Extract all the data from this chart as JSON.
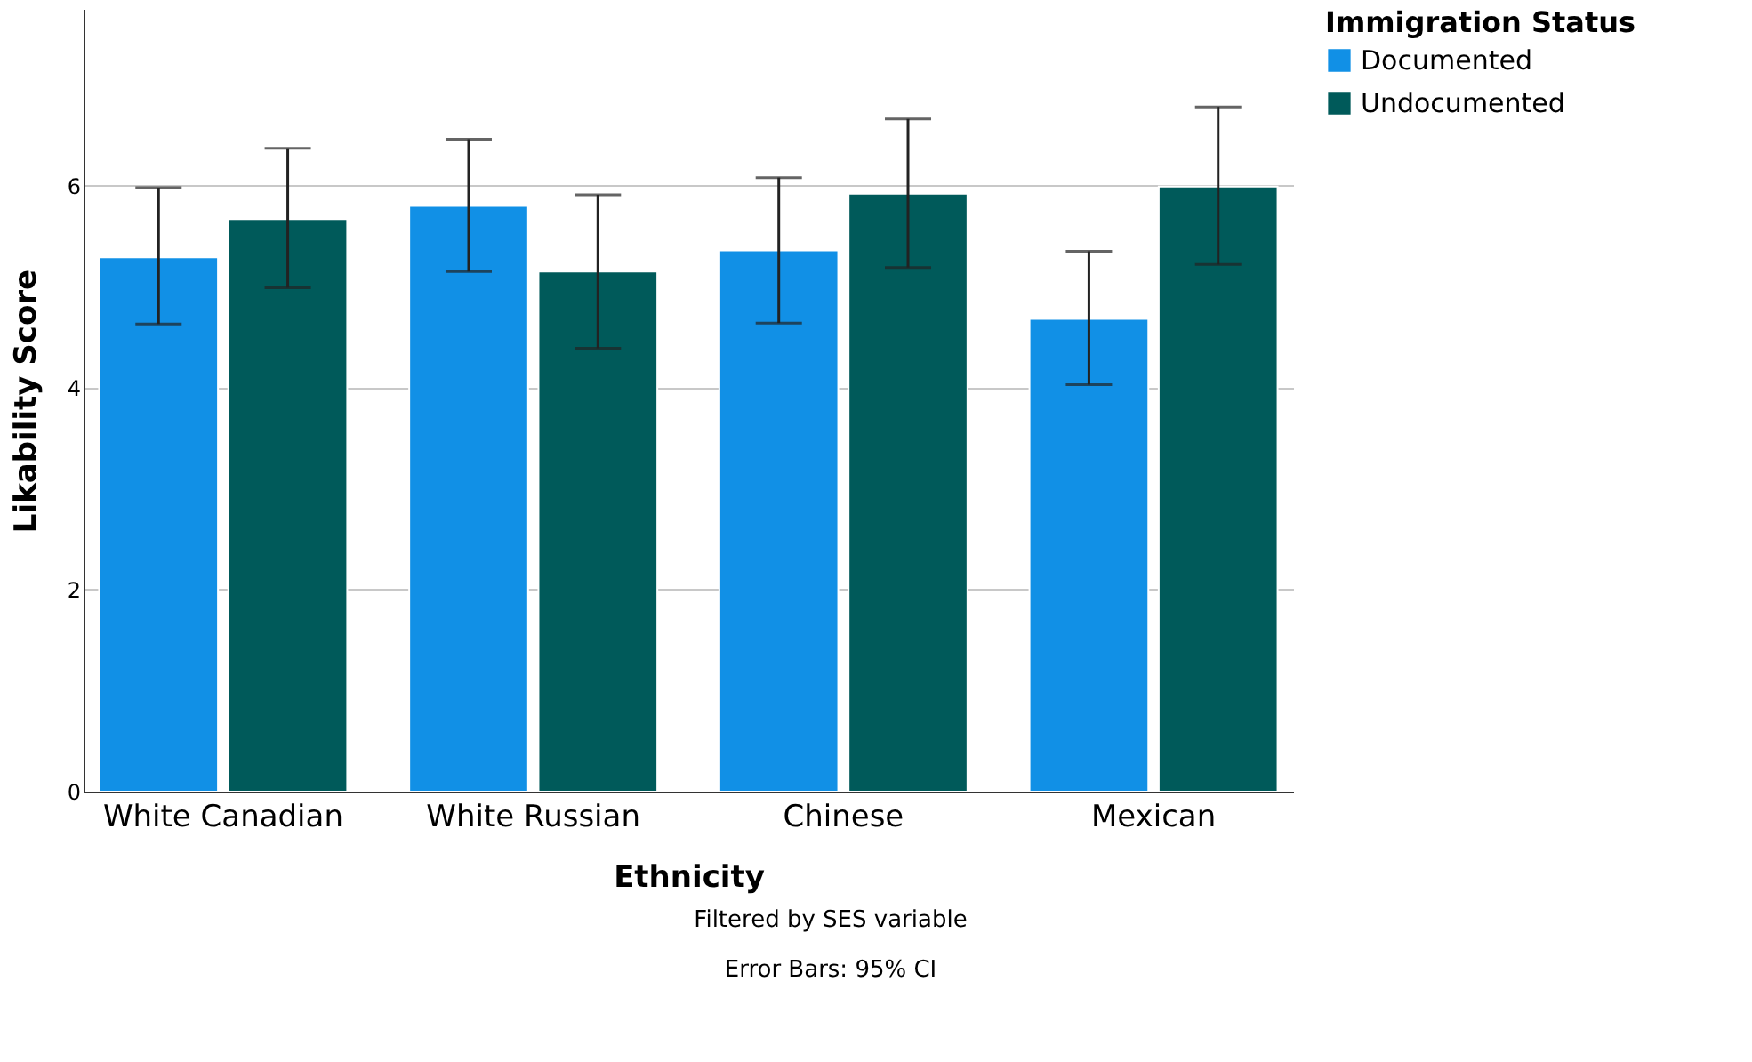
{
  "chart_data": {
    "type": "bar",
    "categories": [
      "White Canadian",
      "White Russian",
      "Chinese",
      "Mexican"
    ],
    "series": [
      {
        "name": "Documented",
        "color": "#1190e6",
        "values": [
          5.29,
          5.8,
          5.36,
          4.68
        ],
        "errors": [
          [
            4.63,
            5.98
          ],
          [
            5.15,
            6.46
          ],
          [
            4.64,
            6.08
          ],
          [
            4.03,
            5.35
          ]
        ]
      },
      {
        "name": "Undocumented",
        "color": "#005a5a",
        "values": [
          5.67,
          5.15,
          5.92,
          5.99
        ],
        "errors": [
          [
            4.99,
            6.37
          ],
          [
            4.39,
            5.91
          ],
          [
            5.19,
            6.66
          ],
          [
            5.22,
            6.78
          ]
        ]
      }
    ],
    "xlabel": "Ethnicity",
    "ylabel": "Likability Score",
    "legend_title": "Immigration Status",
    "ylim": [
      0,
      7.75
    ],
    "yticks": [
      0,
      2,
      4,
      6
    ],
    "grid": "y",
    "legend": "top right",
    "annotations": [
      "Filtered by SES variable",
      "Error Bars: 95% CI"
    ]
  }
}
